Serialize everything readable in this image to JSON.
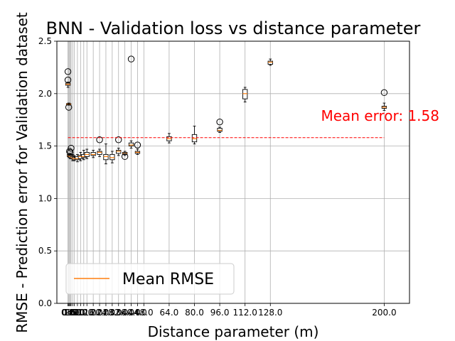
{
  "chart_data": {
    "type": "box",
    "title": "BNN - Validation loss vs distance parameter",
    "xlabel": "Distance parameter (m)",
    "ylabel": "RMSE - Prediction error for Validation dataset",
    "ylim": [
      0,
      2.5
    ],
    "xlim": [
      -7.0,
      216.0
    ],
    "yticks": [
      0.0,
      0.5,
      1.0,
      1.5,
      2.0,
      2.5
    ],
    "ytick_labels": [
      "0.0",
      "0.5",
      "1.0",
      "1.5",
      "2.0",
      "2.5"
    ],
    "xticks": [
      0.0,
      0.5,
      1.0,
      1.5,
      2.0,
      3.0,
      4.0,
      6.0,
      8.0,
      10.0,
      12.0,
      16.0,
      20.0,
      24.0,
      28.0,
      32.0,
      36.0,
      40.0,
      44.0,
      48.0,
      64.0,
      80.0,
      96.0,
      112.0,
      128.0,
      200.0
    ],
    "xtick_labels": [
      "0.0",
      "0.5",
      "1.0",
      "1.5",
      "2.0",
      "3.0",
      "4.0",
      "6.0",
      "8.0",
      "10.0",
      "12.0",
      "16.0",
      "20.0",
      "24.0",
      "28.0",
      "32.0",
      "36.0",
      "40.0",
      "44.0",
      "48.0",
      "64.0",
      "80.0",
      "96.0",
      "112.0",
      "128.0",
      "200.0"
    ],
    "grid": true,
    "legend": {
      "placement": "lower-left",
      "entries": [
        "Mean RMSE"
      ]
    },
    "mean_line": {
      "value": 1.58,
      "x_range": [
        0,
        200
      ],
      "color": "#ff0000"
    },
    "annotation": {
      "text": "Mean error: 1.58",
      "x": 160,
      "y": 1.74,
      "color": "#ff0000"
    },
    "boxes": [
      {
        "x": 0.0,
        "whisker_low": 2.06,
        "q1": 2.08,
        "median": 2.09,
        "q3": 2.1,
        "whisker_high": 2.11,
        "outliers": [
          2.21,
          2.13
        ]
      },
      {
        "x": 0.5,
        "whisker_low": 1.89,
        "q1": 1.895,
        "median": 1.9,
        "q3": 1.905,
        "whisker_high": 1.91,
        "outliers": [
          1.87
        ]
      },
      {
        "x": 1.0,
        "whisker_low": 1.39,
        "q1": 1.4,
        "median": 1.41,
        "q3": 1.42,
        "whisker_high": 1.43,
        "outliers": [
          1.45
        ]
      },
      {
        "x": 1.5,
        "whisker_low": 1.38,
        "q1": 1.39,
        "median": 1.4,
        "q3": 1.41,
        "whisker_high": 1.43,
        "outliers": [
          1.44
        ]
      },
      {
        "x": 2.0,
        "whisker_low": 1.38,
        "q1": 1.39,
        "median": 1.4,
        "q3": 1.41,
        "whisker_high": 1.42,
        "outliers": [
          1.48
        ]
      },
      {
        "x": 3.0,
        "whisker_low": 1.36,
        "q1": 1.38,
        "median": 1.39,
        "q3": 1.4,
        "whisker_high": 1.42,
        "outliers": []
      },
      {
        "x": 4.0,
        "whisker_low": 1.36,
        "q1": 1.37,
        "median": 1.38,
        "q3": 1.39,
        "whisker_high": 1.41,
        "outliers": []
      },
      {
        "x": 6.0,
        "whisker_low": 1.35,
        "q1": 1.37,
        "median": 1.38,
        "q3": 1.4,
        "whisker_high": 1.42,
        "outliers": []
      },
      {
        "x": 8.0,
        "whisker_low": 1.36,
        "q1": 1.38,
        "median": 1.4,
        "q3": 1.41,
        "whisker_high": 1.44,
        "outliers": []
      },
      {
        "x": 10.0,
        "whisker_low": 1.37,
        "q1": 1.39,
        "median": 1.4,
        "q3": 1.42,
        "whisker_high": 1.46,
        "outliers": []
      },
      {
        "x": 12.0,
        "whisker_low": 1.38,
        "q1": 1.4,
        "median": 1.42,
        "q3": 1.44,
        "whisker_high": 1.47,
        "outliers": []
      },
      {
        "x": 16.0,
        "whisker_low": 1.39,
        "q1": 1.41,
        "median": 1.42,
        "q3": 1.44,
        "whisker_high": 1.46,
        "outliers": []
      },
      {
        "x": 20.0,
        "whisker_low": 1.4,
        "q1": 1.42,
        "median": 1.44,
        "q3": 1.45,
        "whisker_high": 1.47,
        "outliers": [
          1.56
        ]
      },
      {
        "x": 24.0,
        "whisker_low": 1.33,
        "q1": 1.37,
        "median": 1.4,
        "q3": 1.42,
        "whisker_high": 1.52,
        "outliers": []
      },
      {
        "x": 28.0,
        "whisker_low": 1.34,
        "q1": 1.37,
        "median": 1.39,
        "q3": 1.42,
        "whisker_high": 1.45,
        "outliers": []
      },
      {
        "x": 32.0,
        "whisker_low": 1.41,
        "q1": 1.43,
        "median": 1.45,
        "q3": 1.46,
        "whisker_high": 1.48,
        "outliers": [
          1.56
        ]
      },
      {
        "x": 36.0,
        "whisker_low": 1.41,
        "q1": 1.42,
        "median": 1.43,
        "q3": 1.44,
        "whisker_high": 1.45,
        "outliers": [
          1.4
        ]
      },
      {
        "x": 40.0,
        "whisker_low": 1.48,
        "q1": 1.5,
        "median": 1.51,
        "q3": 1.53,
        "whisker_high": 1.55,
        "outliers": [
          2.33
        ]
      },
      {
        "x": 44.0,
        "whisker_low": 1.42,
        "q1": 1.43,
        "median": 1.44,
        "q3": 1.45,
        "whisker_high": 1.47,
        "outliers": [
          1.51
        ]
      },
      {
        "x": 64.0,
        "whisker_low": 1.53,
        "q1": 1.55,
        "median": 1.57,
        "q3": 1.59,
        "whisker_high": 1.62,
        "outliers": []
      },
      {
        "x": 80.0,
        "whisker_low": 1.52,
        "q1": 1.54,
        "median": 1.57,
        "q3": 1.61,
        "whisker_high": 1.69,
        "outliers": []
      },
      {
        "x": 96.0,
        "whisker_low": 1.63,
        "q1": 1.64,
        "median": 1.65,
        "q3": 1.67,
        "whisker_high": 1.68,
        "outliers": [
          1.73
        ]
      },
      {
        "x": 112.0,
        "whisker_low": 1.92,
        "q1": 1.95,
        "median": 2.0,
        "q3": 2.04,
        "whisker_high": 2.06,
        "outliers": []
      },
      {
        "x": 128.0,
        "whisker_low": 2.27,
        "q1": 2.28,
        "median": 2.3,
        "q3": 2.31,
        "whisker_high": 2.33,
        "outliers": []
      },
      {
        "x": 200.0,
        "whisker_low": 1.84,
        "q1": 1.86,
        "median": 1.87,
        "q3": 1.88,
        "whisker_high": 1.91,
        "outliers": [
          2.01
        ]
      }
    ],
    "colors": {
      "box": "#000000",
      "median": "#ff7f0e",
      "mean_line": "#ff0000",
      "grid": "#b0b0b0"
    }
  }
}
